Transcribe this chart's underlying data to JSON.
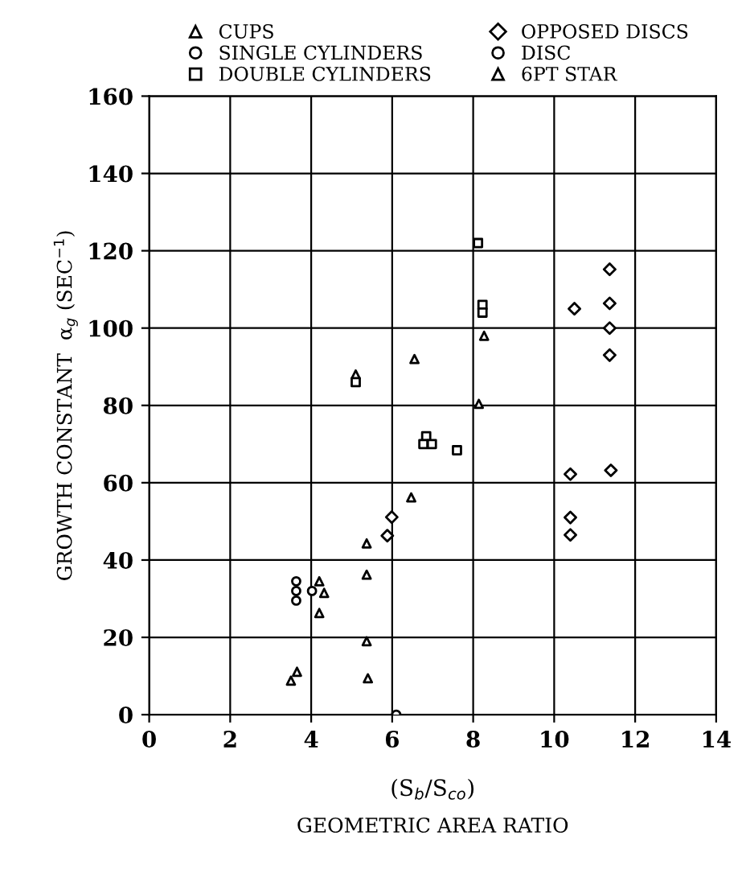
{
  "chart_data": {
    "type": "scatter",
    "xlabel": "(S$_{b}$/S$_{co}$)",
    "ylabel": "GROWTH CONSTANT  α$_{g}$ (SEC$^{−1}$)",
    "annotations": [
      "GEOMETRIC AREA RATIO"
    ],
    "xlim": [
      0,
      14
    ],
    "xticks": [
      0,
      2,
      4,
      6,
      8,
      10,
      12,
      14
    ],
    "ylim": [
      0,
      160
    ],
    "yticks": [
      0,
      20,
      40,
      60,
      80,
      100,
      120,
      140,
      160
    ],
    "grid": true,
    "legend": "top",
    "series": [
      {
        "name": "CUPS",
        "color": "#000000",
        "marker": "triangle",
        "x": [
          3.5,
          3.65,
          4.2,
          4.32,
          4.2,
          5.1,
          6.47,
          6.55,
          8.14,
          8.27
        ],
        "values": [
          8.8,
          11.1,
          34.5,
          31.5,
          26.3,
          88,
          56.2,
          92,
          80.4,
          98
        ]
      },
      {
        "name": "SINGLE CYLINDERS",
        "color": "#000000",
        "marker": "circle",
        "x": [
          3.63,
          3.63,
          3.63,
          4.02
        ],
        "values": [
          34.5,
          32,
          29.5,
          32
        ]
      },
      {
        "name": "DOUBLE CYLINDERS",
        "color": "#000000",
        "marker": "square",
        "x": [
          5.1,
          6.84,
          6.77,
          6.98,
          7.6,
          8.12,
          8.23,
          8.23
        ],
        "values": [
          86,
          72,
          70,
          70,
          68.4,
          122,
          106,
          104
        ]
      },
      {
        "name": "OPPOSED DISCS",
        "color": "#000000",
        "marker": "diamond",
        "x": [
          5.88,
          5.99,
          10.4,
          10.4,
          10.4,
          10.5,
          11.37,
          11.37,
          11.37,
          11.37,
          11.4
        ],
        "values": [
          46.3,
          51.1,
          46.5,
          51,
          62.2,
          105,
          115.2,
          106.4,
          100,
          93,
          63.2
        ]
      },
      {
        "name": "DISC",
        "color": "#000000",
        "marker": "circle",
        "x": [
          6.1
        ],
        "values": [
          0
        ]
      },
      {
        "name": "6PT STAR",
        "color": "#000000",
        "marker": "triangle",
        "x": [
          5.37,
          5.37,
          5.37,
          5.4
        ],
        "values": [
          44.3,
          36.2,
          19,
          9.4
        ]
      }
    ]
  }
}
